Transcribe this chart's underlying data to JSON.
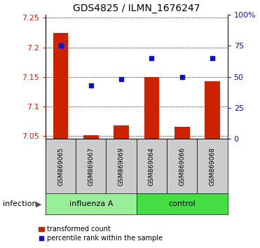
{
  "title": "GDS4825 / ILMN_1676247",
  "samples": [
    "GSM869065",
    "GSM869067",
    "GSM869069",
    "GSM869064",
    "GSM869066",
    "GSM869068"
  ],
  "red_values": [
    7.225,
    7.051,
    7.068,
    7.15,
    7.065,
    7.143
  ],
  "blue_values": [
    75,
    43,
    48,
    65,
    50,
    65
  ],
  "ylim_left": [
    7.045,
    7.255
  ],
  "ylim_right": [
    0,
    100
  ],
  "yticks_left": [
    7.05,
    7.1,
    7.15,
    7.2,
    7.25
  ],
  "yticks_right": [
    0,
    25,
    50,
    75,
    100
  ],
  "ytick_labels_right": [
    "0",
    "25",
    "50",
    "75",
    "100%"
  ],
  "bar_color": "#CC2200",
  "dot_color": "#1111CC",
  "bar_width": 0.5,
  "baseline": 7.045,
  "group_influenza_label": "influenza A",
  "group_control_label": "control",
  "group_influenza_count": 3,
  "group_control_count": 3,
  "bg_label": "#CCCCCC",
  "bg_group_light": "#99EE99",
  "bg_group_dark": "#44DD44",
  "infection_label": "infection",
  "legend_red": "transformed count",
  "legend_blue": "percentile rank within the sample",
  "figsize": [
    3.71,
    3.54
  ],
  "dpi": 100
}
